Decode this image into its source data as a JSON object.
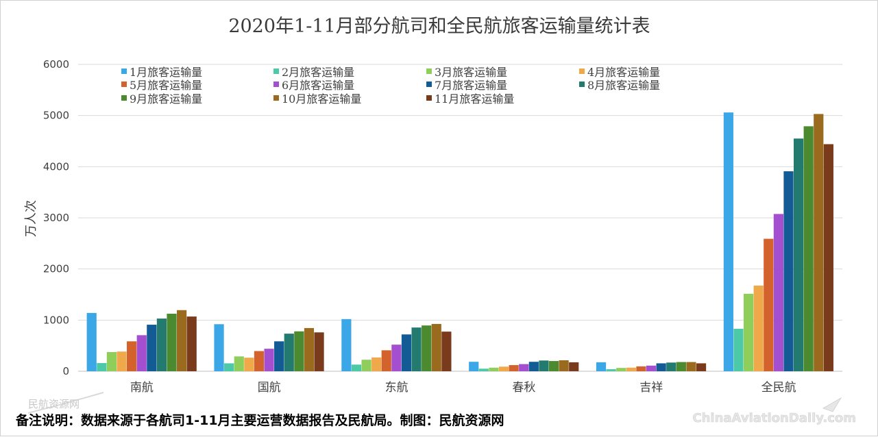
{
  "chart_data": {
    "type": "bar",
    "title": "2020年1-11月部分航司和全民航旅客运输量统计表",
    "ylabel": "万人次",
    "xlabel": "",
    "ylim": [
      0,
      6000
    ],
    "yticks": [
      0,
      1000,
      2000,
      3000,
      4000,
      5000,
      6000
    ],
    "grid": true,
    "legend_position": "top",
    "categories": [
      "南航",
      "国航",
      "东航",
      "春秋",
      "吉祥",
      "全民航"
    ],
    "series": [
      {
        "name": "1月旅客运输量",
        "color": "#3ba7e6",
        "values": [
          1140,
          920,
          1020,
          185,
          175,
          5060
        ]
      },
      {
        "name": "2月旅客运输量",
        "color": "#4ccaa8",
        "values": [
          160,
          155,
          130,
          50,
          40,
          830
        ]
      },
      {
        "name": "3月旅客运输量",
        "color": "#8fce5a",
        "values": [
          375,
          290,
          225,
          70,
          65,
          1515
        ]
      },
      {
        "name": "4月旅客运输量",
        "color": "#f0a94a",
        "values": [
          385,
          265,
          270,
          90,
          70,
          1675
        ]
      },
      {
        "name": "5月旅客运输量",
        "color": "#d4622c",
        "values": [
          585,
          395,
          410,
          120,
          95,
          2590
        ]
      },
      {
        "name": "6月旅客运输量",
        "color": "#a44fd0",
        "values": [
          705,
          440,
          520,
          140,
          110,
          3075
        ]
      },
      {
        "name": "7月旅客运输量",
        "color": "#135b94",
        "values": [
          910,
          585,
          720,
          185,
          155,
          3910
        ]
      },
      {
        "name": "8月旅客运输量",
        "color": "#227b6e",
        "values": [
          1030,
          735,
          855,
          210,
          170,
          4550
        ]
      },
      {
        "name": "9月旅客运输量",
        "color": "#4b8a2e",
        "values": [
          1125,
          780,
          895,
          200,
          180,
          4790
        ]
      },
      {
        "name": "10月旅客运输量",
        "color": "#9a6a1e",
        "values": [
          1195,
          845,
          925,
          215,
          180,
          5030
        ]
      },
      {
        "name": "11月旅客运输量",
        "color": "#7a3b1c",
        "values": [
          1070,
          760,
          775,
          175,
          155,
          4440
        ]
      }
    ]
  },
  "footer": {
    "note": "备注说明：数据来源于各航司1-11月主要运营数据报告及民航局。制图：民航资源网"
  },
  "watermarks": {
    "left_logo_text": "民航资源网",
    "right_site": "ChinaAviationDaily.com"
  }
}
